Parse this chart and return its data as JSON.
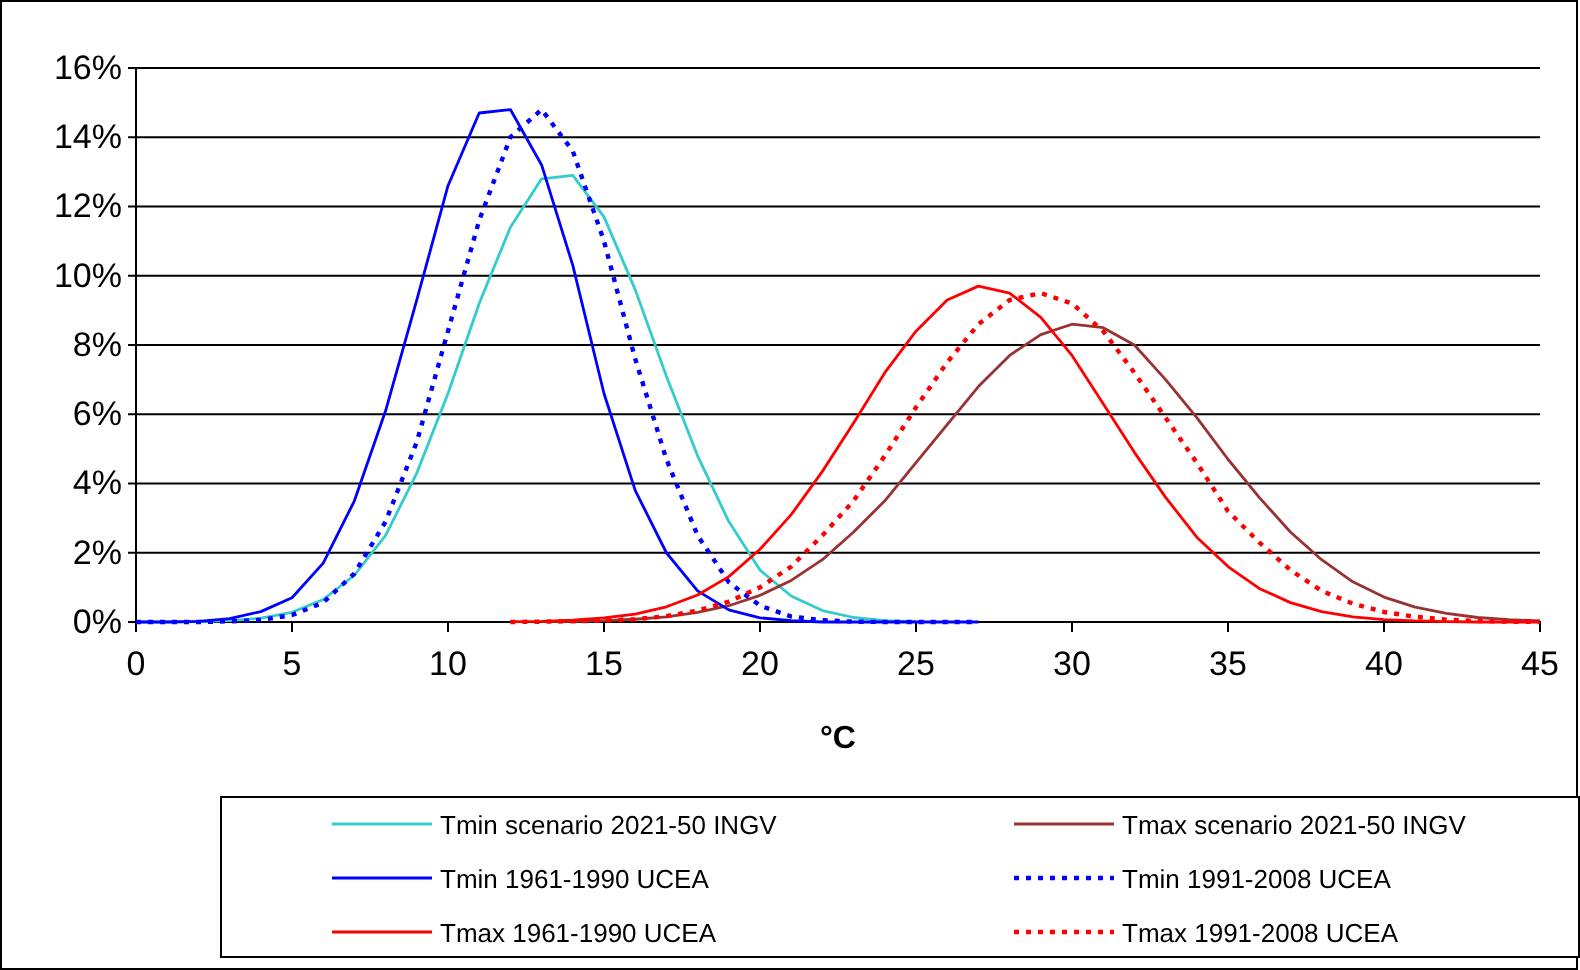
{
  "chart_data": {
    "type": "line",
    "xlabel": "°C",
    "xlim": [
      0,
      45
    ],
    "xticks": [
      0,
      5,
      10,
      15,
      20,
      25,
      30,
      35,
      40,
      45
    ],
    "ylim": [
      0,
      16
    ],
    "yticks": [
      {
        "value": 0,
        "label": "0%"
      },
      {
        "value": 2,
        "label": "2%"
      },
      {
        "value": 4,
        "label": "4%"
      },
      {
        "value": 6,
        "label": "6%"
      },
      {
        "value": 8,
        "label": "8%"
      },
      {
        "value": 10,
        "label": "10%"
      },
      {
        "value": 12,
        "label": "12%"
      },
      {
        "value": 14,
        "label": "14%"
      },
      {
        "value": 16,
        "label": "16%"
      }
    ],
    "grid": "y",
    "legend": "bottom",
    "marker": "none",
    "series": [
      {
        "name": "Tmin scenario 2021-50 INGV",
        "color": "#33cccc",
        "line_style": "solid",
        "x": [
          0,
          1,
          2,
          3,
          4,
          5,
          6,
          7,
          8,
          9,
          10,
          11,
          12,
          13,
          14,
          15,
          16,
          17,
          18,
          19,
          20,
          21,
          22,
          23,
          24,
          25
        ],
        "values": [
          0,
          0,
          0.01,
          0.04,
          0.11,
          0.28,
          0.65,
          1.35,
          2.5,
          4.3,
          6.6,
          9.2,
          11.4,
          12.8,
          12.9,
          11.7,
          9.6,
          7.1,
          4.8,
          2.9,
          1.5,
          0.75,
          0.33,
          0.13,
          0.04,
          0.01
        ]
      },
      {
        "name": "Tmax scenario 2021-50 INGV",
        "color": "#993333",
        "line_style": "solid",
        "x": [
          13,
          14,
          15,
          16,
          17,
          18,
          19,
          20,
          21,
          22,
          23,
          24,
          25,
          26,
          27,
          28,
          29,
          30,
          31,
          32,
          33,
          34,
          35,
          36,
          37,
          38,
          39,
          40,
          41,
          42,
          43,
          44,
          45
        ],
        "values": [
          0.01,
          0.02,
          0.04,
          0.08,
          0.15,
          0.28,
          0.47,
          0.77,
          1.2,
          1.8,
          2.6,
          3.5,
          4.6,
          5.7,
          6.8,
          7.7,
          8.3,
          8.6,
          8.5,
          8.0,
          7.0,
          5.9,
          4.7,
          3.6,
          2.6,
          1.8,
          1.16,
          0.72,
          0.43,
          0.25,
          0.13,
          0.07,
          0.03
        ]
      },
      {
        "name": "Tmin 1961-1990 UCEA",
        "color": "#0000ff",
        "line_style": "solid",
        "x": [
          0,
          1,
          2,
          3,
          4,
          5,
          6,
          7,
          8,
          9,
          10,
          11,
          12,
          13,
          14,
          15,
          16,
          17,
          18,
          19,
          20,
          21,
          22,
          23,
          24,
          25,
          26,
          27
        ],
        "values": [
          0,
          0,
          0.02,
          0.1,
          0.3,
          0.7,
          1.7,
          3.5,
          6.1,
          9.3,
          12.6,
          14.7,
          14.8,
          13.2,
          10.3,
          6.6,
          3.8,
          2.0,
          0.9,
          0.35,
          0.12,
          0.04,
          0,
          0,
          0,
          0,
          0,
          0
        ]
      },
      {
        "name": "Tmin 1991-2008 UCEA",
        "color": "#0000ff",
        "line_style": "dotted",
        "x": [
          0,
          1,
          2,
          3,
          4,
          5,
          6,
          7,
          8,
          9,
          10,
          11,
          12,
          13,
          14,
          15,
          16,
          17,
          18,
          19,
          20,
          21,
          22,
          23,
          24,
          25,
          26,
          27
        ],
        "values": [
          0,
          0,
          0,
          0.02,
          0.06,
          0.2,
          0.56,
          1.4,
          2.9,
          5.2,
          8.4,
          11.6,
          14.0,
          14.8,
          13.6,
          11.0,
          7.6,
          4.7,
          2.5,
          1.15,
          0.47,
          0.16,
          0.05,
          0.01,
          0,
          0,
          0,
          0
        ]
      },
      {
        "name": "Tmax 1961-1990 UCEA",
        "color": "#ff0000",
        "line_style": "solid",
        "x": [
          12,
          13,
          14,
          15,
          16,
          17,
          18,
          19,
          20,
          21,
          22,
          23,
          24,
          25,
          26,
          27,
          28,
          29,
          30,
          31,
          32,
          33,
          34,
          35,
          36,
          37,
          38,
          39,
          40,
          41,
          42,
          43,
          44,
          45
        ],
        "values": [
          0.01,
          0.02,
          0.05,
          0.12,
          0.23,
          0.44,
          0.78,
          1.31,
          2.1,
          3.1,
          4.35,
          5.75,
          7.2,
          8.4,
          9.3,
          9.7,
          9.5,
          8.8,
          7.7,
          6.3,
          4.9,
          3.6,
          2.45,
          1.6,
          0.97,
          0.56,
          0.3,
          0.15,
          0.07,
          0.03,
          0.01,
          0,
          0,
          0
        ]
      },
      {
        "name": "Tmax 1991-2008 UCEA",
        "color": "#ff0000",
        "line_style": "dotted",
        "x": [
          12,
          13,
          14,
          15,
          16,
          17,
          18,
          19,
          20,
          21,
          22,
          23,
          24,
          25,
          26,
          27,
          28,
          29,
          30,
          31,
          32,
          33,
          34,
          35,
          36,
          37,
          38,
          39,
          40,
          41,
          42,
          43,
          44,
          45
        ],
        "values": [
          0,
          0.01,
          0.02,
          0.04,
          0.08,
          0.17,
          0.33,
          0.59,
          1.0,
          1.6,
          2.5,
          3.5,
          4.8,
          6.2,
          7.5,
          8.6,
          9.3,
          9.5,
          9.2,
          8.4,
          7.2,
          5.9,
          4.6,
          3.2,
          2.3,
          1.5,
          0.9,
          0.53,
          0.29,
          0.15,
          0.07,
          0.03,
          0.01,
          0
        ]
      }
    ]
  }
}
